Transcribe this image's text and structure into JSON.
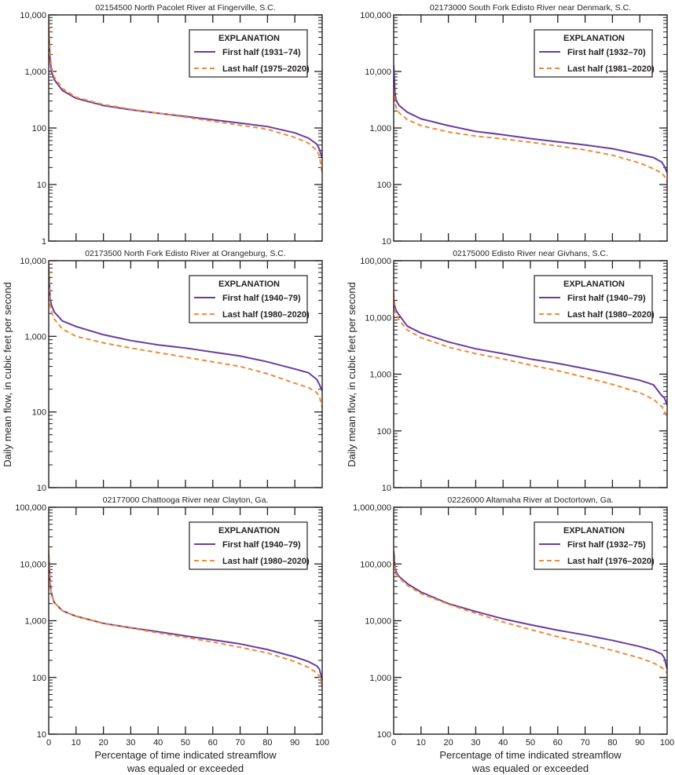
{
  "figure": {
    "y_axis_title": "Daily mean flow, in cubic feet per second",
    "x_axis_title_line1": "Percentage of time indicated streamflow",
    "x_axis_title_line2": "was equaled or exceeded",
    "colors": {
      "first_half": "#6a3d9a",
      "last_half": "#f08a3c",
      "frame": "#231f20"
    }
  },
  "chart_data": [
    {
      "type": "line",
      "title": "02154500 North Pacolet River at Fingerville, S.C.",
      "xlabel": "Percentage of time indicated streamflow was equaled or exceeded",
      "ylabel": "Daily mean flow, in cubic feet per second",
      "xlim": [
        0,
        100
      ],
      "ylim": [
        1,
        10000
      ],
      "yscale": "log",
      "yticks": [
        "1",
        "10",
        "100",
        "1,000",
        "10,000"
      ],
      "xticks": [
        "0",
        "10",
        "20",
        "30",
        "40",
        "50",
        "60",
        "70",
        "80",
        "90",
        "100"
      ],
      "legend": {
        "title": "EXPLANATION",
        "position": "top-right"
      },
      "x": [
        0,
        0.5,
        1,
        2,
        5,
        10,
        20,
        30,
        40,
        50,
        60,
        70,
        80,
        90,
        95,
        98,
        99,
        100
      ],
      "series": [
        {
          "name": "First half (1931–74)",
          "style": "solid",
          "values": [
            5000,
            1600,
            1000,
            720,
            460,
            335,
            250,
            210,
            182,
            160,
            140,
            122,
            106,
            82,
            66,
            52,
            42,
            29
          ]
        },
        {
          "name": "Last half (1975–2020)",
          "style": "dashed",
          "values": [
            8000,
            2000,
            1200,
            800,
            500,
            350,
            260,
            215,
            183,
            155,
            132,
            112,
            95,
            68,
            54,
            40,
            32,
            16
          ]
        }
      ]
    },
    {
      "type": "line",
      "title": "02173000 South Fork Edisto River near Denmark, S.C.",
      "xlabel": "Percentage of time indicated streamflow was equaled or exceeded",
      "ylabel": "Daily mean flow, in cubic feet per second",
      "xlim": [
        0,
        100
      ],
      "ylim": [
        10,
        100000
      ],
      "yscale": "log",
      "yticks": [
        "10",
        "100",
        "1,000",
        "10,000",
        "100,000"
      ],
      "xticks": [
        "0",
        "10",
        "20",
        "30",
        "40",
        "50",
        "60",
        "70",
        "80",
        "90",
        "100"
      ],
      "legend": {
        "title": "EXPLANATION",
        "position": "top-right"
      },
      "x": [
        0,
        0.5,
        1,
        2,
        5,
        10,
        20,
        30,
        40,
        50,
        60,
        70,
        80,
        90,
        95,
        98,
        99,
        100
      ],
      "series": [
        {
          "name": "First half (1932–70)",
          "style": "solid",
          "values": [
            13000,
            4000,
            3000,
            2500,
            1900,
            1450,
            1100,
            870,
            760,
            650,
            570,
            500,
            430,
            340,
            300,
            250,
            210,
            160
          ]
        },
        {
          "name": "Last half (1981–2020)",
          "style": "dashed",
          "values": [
            5000,
            2800,
            2200,
            1850,
            1400,
            1100,
            850,
            720,
            640,
            560,
            480,
            410,
            330,
            240,
            190,
            160,
            140,
            110
          ]
        }
      ]
    },
    {
      "type": "line",
      "title": "02173500 North Fork Edisto River at Orangeburg, S.C.",
      "xlabel": "Percentage of time indicated streamflow was equaled or exceeded",
      "ylabel": "Daily mean flow, in cubic feet per second",
      "xlim": [
        0,
        100
      ],
      "ylim": [
        10,
        10000
      ],
      "yscale": "log",
      "yticks": [
        "10",
        "100",
        "1,000",
        "10,000"
      ],
      "xticks": [
        "0",
        "10",
        "20",
        "30",
        "40",
        "50",
        "60",
        "70",
        "80",
        "90",
        "100"
      ],
      "legend": {
        "title": "EXPLANATION",
        "position": "top-right"
      },
      "x": [
        0,
        0.5,
        1,
        2,
        5,
        10,
        20,
        30,
        40,
        50,
        60,
        70,
        80,
        90,
        95,
        98,
        99,
        100
      ],
      "series": [
        {
          "name": "First half (1940–79)",
          "style": "solid",
          "values": [
            8000,
            3200,
            2600,
            2100,
            1600,
            1350,
            1050,
            880,
            770,
            700,
            620,
            550,
            460,
            370,
            330,
            270,
            230,
            190
          ]
        },
        {
          "name": "Last half (1980–2020)",
          "style": "dashed",
          "values": [
            9000,
            2600,
            2100,
            1700,
            1250,
            1000,
            820,
            700,
            610,
            530,
            460,
            400,
            320,
            240,
            210,
            180,
            160,
            115
          ]
        }
      ]
    },
    {
      "type": "line",
      "title": "02175000 Edisto River near Givhans, S.C.",
      "xlabel": "Percentage of time indicated streamflow was equaled or exceeded",
      "ylabel": "Daily mean flow, in cubic feet per second",
      "xlim": [
        0,
        100
      ],
      "ylim": [
        10,
        100000
      ],
      "yscale": "log",
      "yticks": [
        "10",
        "100",
        "1,000",
        "10,000",
        "100,000"
      ],
      "xticks": [
        "0",
        "10",
        "20",
        "30",
        "40",
        "50",
        "60",
        "70",
        "80",
        "90",
        "100"
      ],
      "legend": {
        "title": "EXPLANATION",
        "position": "top-right"
      },
      "x": [
        0,
        0.5,
        1,
        2,
        5,
        10,
        20,
        30,
        40,
        50,
        60,
        70,
        80,
        90,
        95,
        98,
        99,
        100
      ],
      "series": [
        {
          "name": "First half (1940–79)",
          "style": "solid",
          "values": [
            21000,
            15000,
            13000,
            11000,
            7000,
            5300,
            3700,
            2800,
            2300,
            1850,
            1550,
            1250,
            1000,
            780,
            650,
            420,
            380,
            290
          ]
        },
        {
          "name": "Last half (1980–2020)",
          "style": "dashed",
          "values": [
            27000,
            13000,
            11000,
            9000,
            6000,
            4400,
            3000,
            2300,
            1850,
            1450,
            1150,
            880,
            660,
            470,
            360,
            270,
            230,
            170
          ]
        }
      ]
    },
    {
      "type": "line",
      "title": "02177000 Chattooga River near Clayton, Ga.",
      "xlabel": "Percentage of time indicated streamflow was equaled or exceeded",
      "ylabel": "Daily mean flow, in cubic feet per second",
      "xlim": [
        0,
        100
      ],
      "ylim": [
        10,
        100000
      ],
      "yscale": "log",
      "yticks": [
        "10",
        "100",
        "1,000",
        "10,000",
        "100,000"
      ],
      "xticks": [
        "0",
        "10",
        "20",
        "30",
        "40",
        "50",
        "60",
        "70",
        "80",
        "90",
        "100"
      ],
      "legend": {
        "title": "EXPLANATION",
        "position": "top-right"
      },
      "x": [
        0,
        0.5,
        1,
        2,
        5,
        10,
        20,
        30,
        40,
        50,
        60,
        70,
        80,
        90,
        95,
        98,
        99,
        100
      ],
      "series": [
        {
          "name": "First half (1940–79)",
          "style": "solid",
          "values": [
            15000,
            4500,
            3000,
            2100,
            1500,
            1200,
            900,
            750,
            640,
            540,
            460,
            390,
            310,
            230,
            190,
            160,
            140,
            90
          ]
        },
        {
          "name": "Last half (1980–2020)",
          "style": "dashed",
          "values": [
            18000,
            4800,
            2900,
            2100,
            1500,
            1200,
            890,
            740,
            610,
            510,
            420,
            340,
            270,
            190,
            150,
            120,
            105,
            70
          ]
        }
      ]
    },
    {
      "type": "line",
      "title": "02226000 Altamaha River at Doctortown, Ga.",
      "xlabel": "Percentage of time indicated streamflow was equaled or exceeded",
      "ylabel": "Daily mean flow, in cubic feet per second",
      "xlim": [
        0,
        100
      ],
      "ylim": [
        100,
        1000000
      ],
      "yscale": "log",
      "yticks": [
        "100",
        "1,000",
        "10,000",
        "100,000",
        "1,000,000"
      ],
      "xticks": [
        "0",
        "10",
        "20",
        "30",
        "40",
        "50",
        "60",
        "70",
        "80",
        "90",
        "100"
      ],
      "legend": {
        "title": "EXPLANATION",
        "position": "top-right"
      },
      "x": [
        0,
        0.5,
        1,
        2,
        5,
        10,
        20,
        30,
        40,
        50,
        60,
        70,
        80,
        90,
        95,
        98,
        99,
        100
      ],
      "series": [
        {
          "name": "First half (1932–75)",
          "style": "solid",
          "values": [
            170000,
            85000,
            70000,
            60000,
            45000,
            32000,
            20000,
            14500,
            10800,
            8500,
            6800,
            5600,
            4500,
            3500,
            3000,
            2600,
            2200,
            1400
          ]
        },
        {
          "name": "Last half (1976–2020)",
          "style": "dashed",
          "values": [
            130000,
            80000,
            65000,
            57000,
            42000,
            30000,
            19500,
            13500,
            9500,
            7000,
            5200,
            4000,
            3000,
            2200,
            1800,
            1500,
            1350,
            1200
          ]
        }
      ]
    }
  ]
}
